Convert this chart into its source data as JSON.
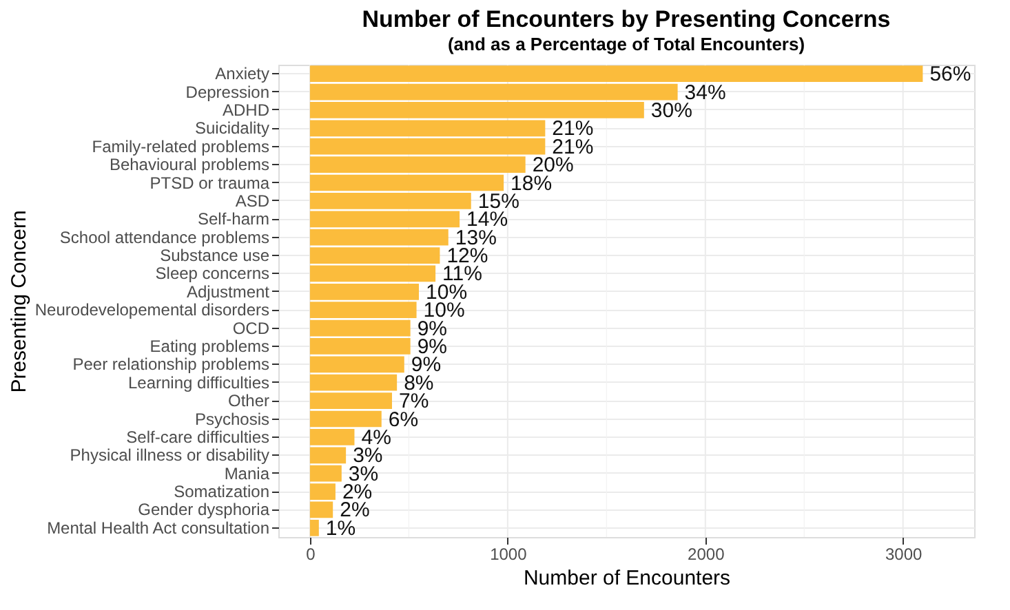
{
  "chart_data": {
    "type": "bar",
    "orientation": "horizontal",
    "title": "Number of Encounters by Presenting Concerns",
    "subtitle": "(and as a Percentage of Total Encounters)",
    "xlabel": "Number of Encounters",
    "ylabel": "Presenting Concern",
    "categories": [
      "Anxiety",
      "Depression",
      "ADHD",
      "Suicidality",
      "Family-related problems",
      "Behavioural problems",
      "PTSD or trauma",
      "ASD",
      "Self-harm",
      "School attendance problems",
      "Substance use",
      "Sleep concerns",
      "Adjustment",
      "Neurodevelopemental disorders",
      "OCD",
      "Eating problems",
      "Peer relationship problems",
      "Learning difficulties",
      "Other",
      "Psychosis",
      "Self-care difficulties",
      "Physical illness or disability",
      "Mania",
      "Somatization",
      "Gender dysphoria",
      "Mental Health Act consultation"
    ],
    "values": [
      3100,
      1860,
      1690,
      1190,
      1190,
      1090,
      980,
      815,
      757,
      700,
      657,
      635,
      551,
      539,
      508,
      508,
      477,
      440,
      415,
      362,
      225,
      182,
      160,
      129,
      116,
      45
    ],
    "annotations": [
      {
        "text": "56%",
        "x": 3100,
        "y": "Anxiety"
      },
      {
        "text": "34%",
        "x": 1860,
        "y": "Depression"
      },
      {
        "text": "30%",
        "x": 1690,
        "y": "ADHD"
      },
      {
        "text": "21%",
        "x": 1190,
        "y": "Suicidality"
      },
      {
        "text": "21%",
        "x": 1190,
        "y": "Family-related problems"
      },
      {
        "text": "20%",
        "x": 1090,
        "y": "Behavioural problems"
      },
      {
        "text": "18%",
        "x": 980,
        "y": "PTSD or trauma"
      },
      {
        "text": "15%",
        "x": 815,
        "y": "ASD"
      },
      {
        "text": "14%",
        "x": 757,
        "y": "Self-harm"
      },
      {
        "text": "13%",
        "x": 700,
        "y": "School attendance problems"
      },
      {
        "text": "12%",
        "x": 657,
        "y": "Substance use"
      },
      {
        "text": "11%",
        "x": 635,
        "y": "Sleep concerns"
      },
      {
        "text": "10%",
        "x": 551,
        "y": "Adjustment"
      },
      {
        "text": "10%",
        "x": 539,
        "y": "Neurodevelopemental disorders"
      },
      {
        "text": "9%",
        "x": 508,
        "y": "OCD"
      },
      {
        "text": "9%",
        "x": 508,
        "y": "Eating problems"
      },
      {
        "text": "9%",
        "x": 477,
        "y": "Peer relationship problems"
      },
      {
        "text": "8%",
        "x": 440,
        "y": "Learning difficulties"
      },
      {
        "text": "7%",
        "x": 415,
        "y": "Other"
      },
      {
        "text": "6%",
        "x": 362,
        "y": "Psychosis"
      },
      {
        "text": "4%",
        "x": 225,
        "y": "Self-care difficulties"
      },
      {
        "text": "3%",
        "x": 182,
        "y": "Physical illness or disability"
      },
      {
        "text": "3%",
        "x": 160,
        "y": "Mania"
      },
      {
        "text": "2%",
        "x": 129,
        "y": "Somatization"
      },
      {
        "text": "2%",
        "x": 116,
        "y": "Gender dysphoria"
      },
      {
        "text": "1%",
        "x": 45,
        "y": "Mental Health Act consultation"
      }
    ],
    "color": "#fbbc3c",
    "xlim": [
      -160,
      3360
    ],
    "xticks": [
      0,
      1000,
      2000,
      3000
    ],
    "grid": true
  }
}
